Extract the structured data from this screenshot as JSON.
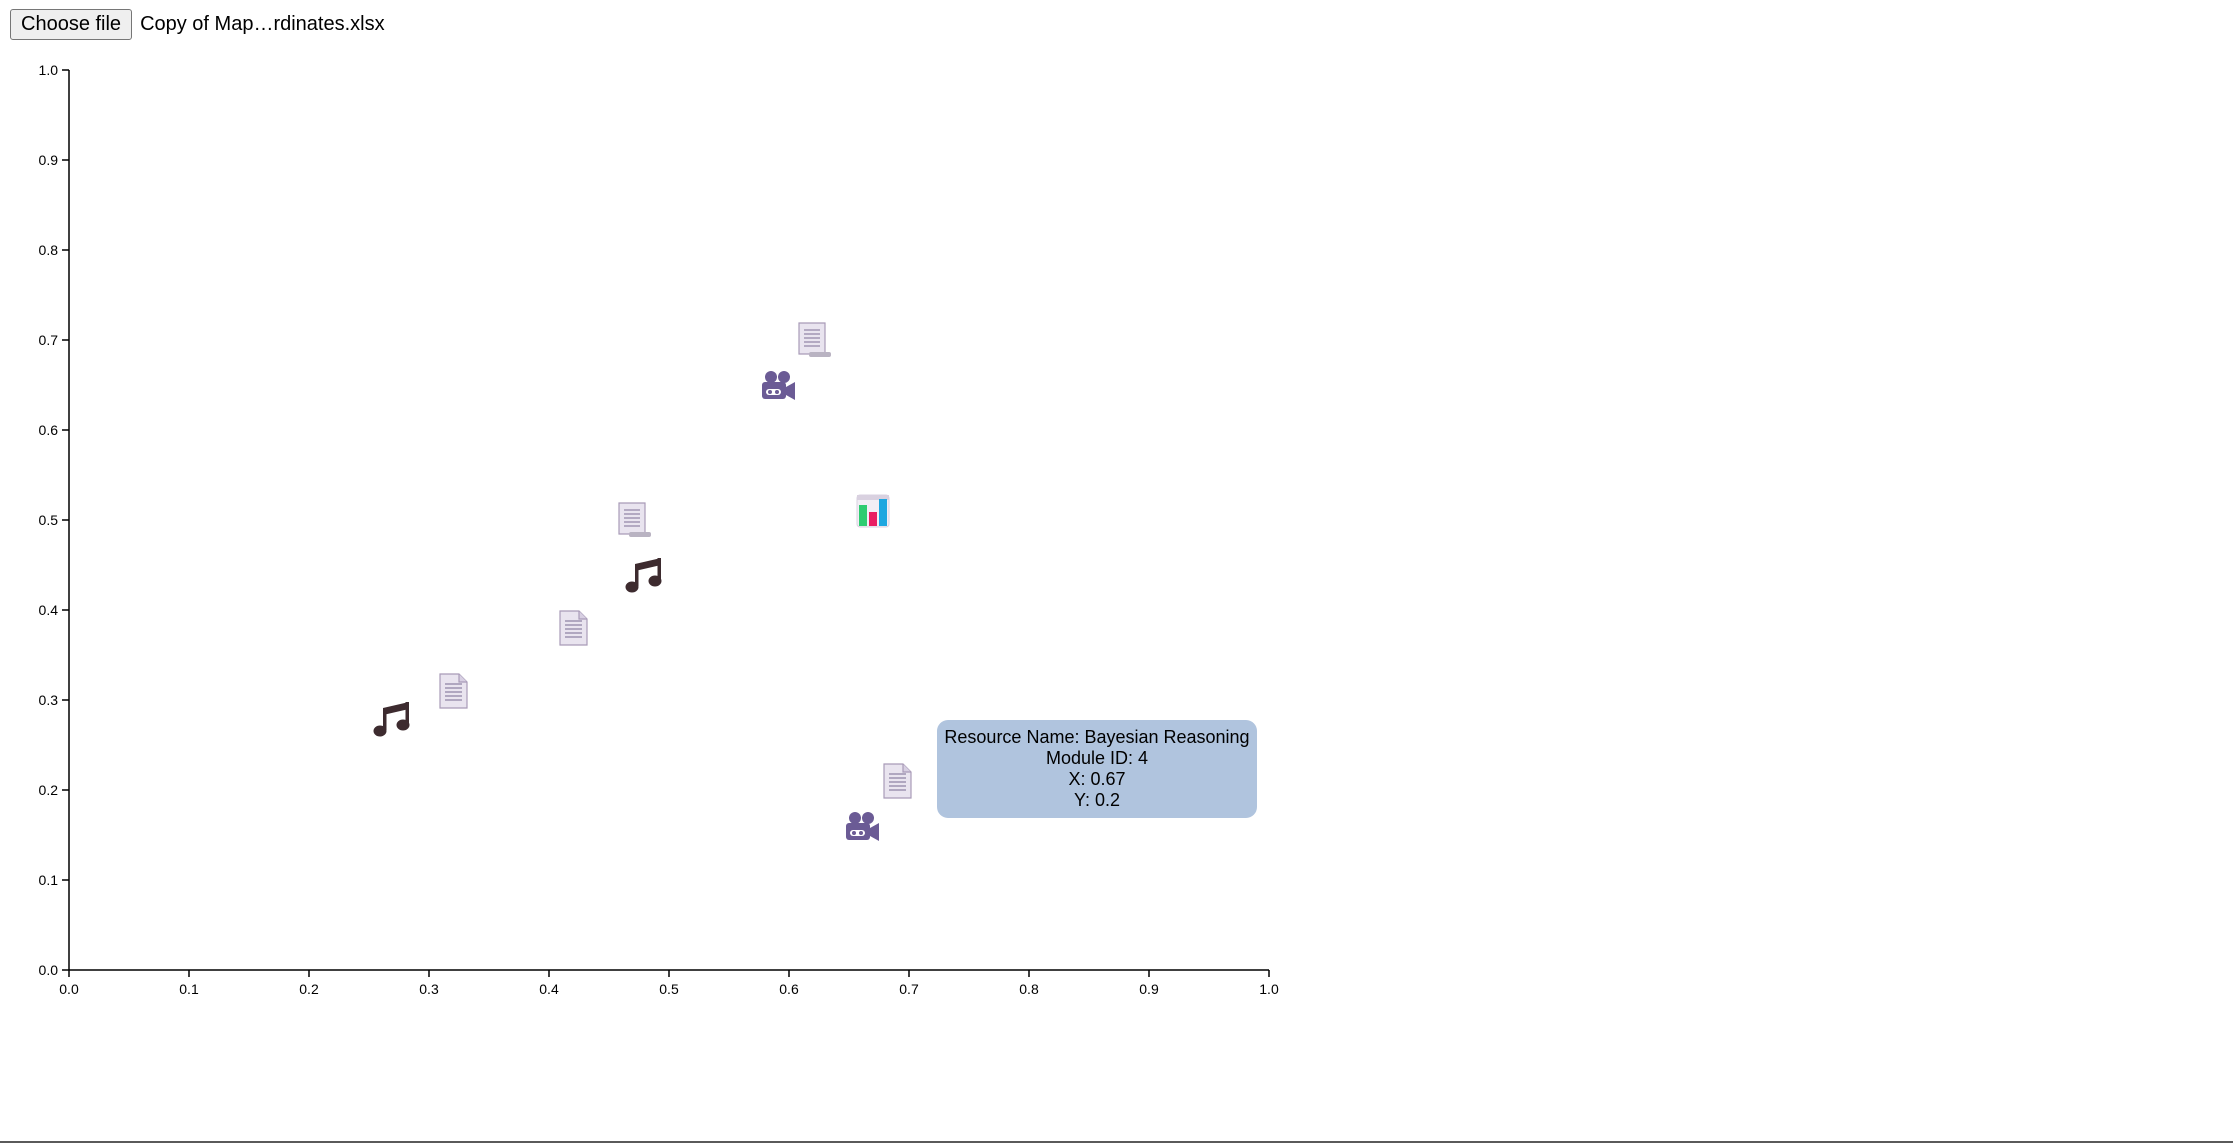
{
  "file_input": {
    "button_label": "Choose file",
    "file_name": "Copy of Map…rdinates.xlsx"
  },
  "chart_data": {
    "type": "scatter",
    "title": "",
    "xlabel": "",
    "ylabel": "",
    "xlim": [
      0,
      1
    ],
    "ylim": [
      0,
      1
    ],
    "x_ticks": [
      "0.0",
      "0.1",
      "0.2",
      "0.3",
      "0.4",
      "0.5",
      "0.6",
      "0.7",
      "0.8",
      "0.9",
      "1.0"
    ],
    "y_ticks": [
      "0.0",
      "0.1",
      "0.2",
      "0.3",
      "0.4",
      "0.5",
      "0.6",
      "0.7",
      "0.8",
      "0.9",
      "1.0"
    ],
    "grid": false,
    "points": [
      {
        "x": 0.62,
        "y": 0.7,
        "icon": "script-icon"
      },
      {
        "x": 0.59,
        "y": 0.65,
        "icon": "video-camera-icon"
      },
      {
        "x": 0.67,
        "y": 0.51,
        "icon": "bar-chart-icon"
      },
      {
        "x": 0.47,
        "y": 0.5,
        "icon": "script-icon"
      },
      {
        "x": 0.48,
        "y": 0.44,
        "icon": "music-note-icon"
      },
      {
        "x": 0.42,
        "y": 0.38,
        "icon": "document-icon"
      },
      {
        "x": 0.32,
        "y": 0.31,
        "icon": "document-icon"
      },
      {
        "x": 0.27,
        "y": 0.28,
        "icon": "music-note-icon"
      },
      {
        "x": 0.69,
        "y": 0.21,
        "icon": "document-icon"
      },
      {
        "x": 0.66,
        "y": 0.16,
        "icon": "video-camera-icon"
      }
    ]
  },
  "tooltip": {
    "resource_name": "Resource Name: Bayesian Reasoning",
    "module_id": "Module ID: 4",
    "x": "X: 0.67",
    "y": "Y: 0.2"
  },
  "colors": {
    "axis": "#000000",
    "tooltip_bg": "#b0c4de",
    "camera": "#6b5b95",
    "music": "#3d2b2f",
    "document": "#e9e4ef"
  }
}
